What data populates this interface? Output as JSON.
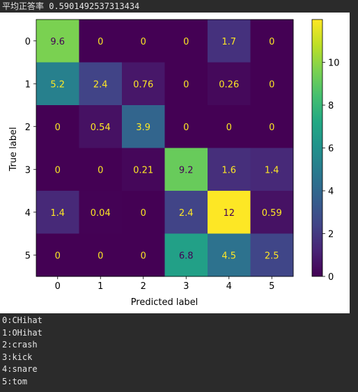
{
  "output": {
    "accuracy_line": "平均正答率 0.5901492537313434",
    "label_map": [
      "0:CHihat",
      "1:OHihat",
      "2:crash",
      "3:kick",
      "4:snare",
      "5:tom"
    ]
  },
  "chart_data": {
    "type": "heatmap",
    "xlabel": "Predicted label",
    "ylabel": "True label",
    "x_ticks": [
      "0",
      "1",
      "2",
      "3",
      "4",
      "5"
    ],
    "y_ticks": [
      "0",
      "1",
      "2",
      "3",
      "4",
      "5"
    ],
    "cell_labels": [
      [
        "9.6",
        "0",
        "0",
        "0",
        "1.7",
        "0"
      ],
      [
        "5.2",
        "2.4",
        "0.76",
        "0",
        "0.26",
        "0"
      ],
      [
        "0",
        "0.54",
        "3.9",
        "0",
        "0",
        "0"
      ],
      [
        "0",
        "0",
        "0.21",
        "9.2",
        "1.6",
        "1.4"
      ],
      [
        "1.4",
        "0.04",
        "0",
        "2.4",
        "12",
        "0.59"
      ],
      [
        "0",
        "0",
        "0",
        "6.8",
        "4.5",
        "2.5"
      ]
    ],
    "values": [
      [
        9.6,
        0,
        0,
        0,
        1.7,
        0
      ],
      [
        5.2,
        2.4,
        0.76,
        0,
        0.26,
        0
      ],
      [
        0,
        0.54,
        3.9,
        0,
        0,
        0
      ],
      [
        0,
        0,
        0.21,
        9.2,
        1.6,
        1.4
      ],
      [
        1.4,
        0.04,
        0,
        2.4,
        12,
        0.59
      ],
      [
        0,
        0,
        0,
        6.8,
        4.5,
        2.5
      ]
    ],
    "vmin": 0,
    "vmax": 12,
    "colormap": "viridis",
    "colorbar_ticks": [
      "0",
      "2",
      "4",
      "6",
      "8",
      "10"
    ],
    "colorbar_tick_values": [
      0,
      2,
      4,
      6,
      8,
      10
    ],
    "text_color_light": "#fde725",
    "text_color_dark": "#440154"
  }
}
